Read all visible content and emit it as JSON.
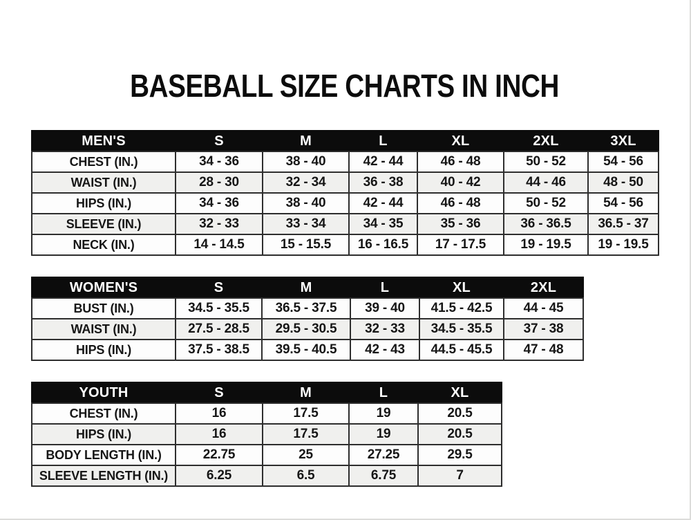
{
  "page": {
    "title": "BASEBALL SIZE CHARTS IN INCH"
  },
  "colors": {
    "header_bg": "#0c0c0c",
    "header_text": "#ffffff",
    "row_alt_bg": "#f0f0ee",
    "border": "#2e2e2e",
    "text": "#161616"
  },
  "tables": [
    {
      "name": "mens",
      "header": [
        "MEN'S",
        "S",
        "M",
        "L",
        "XL",
        "2XL",
        "3XL"
      ],
      "rows": [
        [
          "CHEST (IN.)",
          "34 - 36",
          "38 - 40",
          "42 - 44",
          "46 - 48",
          "50 - 52",
          "54 - 56"
        ],
        [
          "WAIST (IN.)",
          "28 - 30",
          "32 - 34",
          "36 - 38",
          "40 - 42",
          "44 - 46",
          "48 - 50"
        ],
        [
          "HIPS (IN.)",
          "34 - 36",
          "38 - 40",
          "42 - 44",
          "46 - 48",
          "50 - 52",
          "54 - 56"
        ],
        [
          "SLEEVE (IN.)",
          "32 - 33",
          "33 - 34",
          "34 - 35",
          "35 - 36",
          "36 - 36.5",
          "36.5 - 37"
        ],
        [
          "NECK (IN.)",
          "14 - 14.5",
          "15 - 15.5",
          "16 - 16.5",
          "17 - 17.5",
          "19 - 19.5",
          "19 - 19.5"
        ]
      ]
    },
    {
      "name": "womens",
      "header": [
        "WOMEN'S",
        "S",
        "M",
        "L",
        "XL",
        "2XL"
      ],
      "rows": [
        [
          "BUST (IN.)",
          "34.5 - 35.5",
          "36.5 - 37.5",
          "39 - 40",
          "41.5 - 42.5",
          "44 - 45"
        ],
        [
          "WAIST (IN.)",
          "27.5 - 28.5",
          "29.5 - 30.5",
          "32 - 33",
          "34.5 - 35.5",
          "37 - 38"
        ],
        [
          "HIPS (IN.)",
          "37.5 - 38.5",
          "39.5 - 40.5",
          "42 - 43",
          "44.5 - 45.5",
          "47 - 48"
        ]
      ]
    },
    {
      "name": "youth",
      "header": [
        "YOUTH",
        "S",
        "M",
        "L",
        "XL"
      ],
      "rows": [
        [
          "CHEST (IN.)",
          "16",
          "17.5",
          "19",
          "20.5"
        ],
        [
          "HIPS (IN.)",
          "16",
          "17.5",
          "19",
          "20.5"
        ],
        [
          "BODY LENGTH (IN.)",
          "22.75",
          "25",
          "27.25",
          "29.5"
        ],
        [
          "SLEEVE LENGTH (IN.)",
          "6.25",
          "6.5",
          "6.75",
          "7"
        ]
      ]
    }
  ]
}
